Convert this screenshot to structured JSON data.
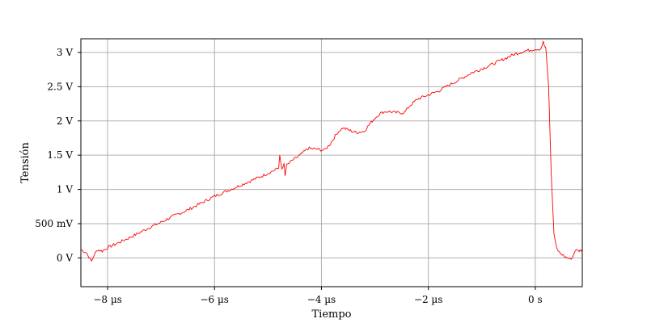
{
  "chart_data": {
    "type": "line",
    "title": "",
    "xlabel": "Tiempo",
    "ylabel": "Tensión",
    "xlim": [
      -8.5,
      0.88
    ],
    "ylim": [
      -0.42,
      3.2
    ],
    "grid": true,
    "line_color": "#ff0000",
    "x_ticks": [
      {
        "value": -8,
        "label": "−8 µs"
      },
      {
        "value": -6,
        "label": "−6 µs"
      },
      {
        "value": -4,
        "label": "−4 µs"
      },
      {
        "value": -2,
        "label": "−2 µs"
      },
      {
        "value": 0,
        "label": "0 s"
      }
    ],
    "y_ticks": [
      {
        "value": 0,
        "label": "0 V"
      },
      {
        "value": 0.5,
        "label": "500 mV"
      },
      {
        "value": 1,
        "label": "1 V"
      },
      {
        "value": 1.5,
        "label": "1.5 V"
      },
      {
        "value": 2,
        "label": "2 V"
      },
      {
        "value": 2.5,
        "label": "2.5 V"
      },
      {
        "value": 3,
        "label": "3 V"
      }
    ],
    "series": [
      {
        "x": [
          -8.5,
          -8.4,
          -8.3,
          -8.25,
          -8.18,
          -8.1,
          -8.0,
          -7.8,
          -7.5,
          -7.2,
          -7.0,
          -6.8,
          -6.5,
          -6.2,
          -6.0,
          -5.7,
          -5.4,
          -5.1,
          -4.8,
          -4.78,
          -4.74,
          -4.7,
          -4.68,
          -4.65,
          -4.55,
          -4.4,
          -4.25,
          -4.1,
          -3.95,
          -3.85,
          -3.7,
          -3.6,
          -3.5,
          -3.35,
          -3.2,
          -3.05,
          -2.95,
          -2.85,
          -2.75,
          -2.6,
          -2.45,
          -2.35,
          -2.2,
          -2.0,
          -1.8,
          -1.6,
          -1.4,
          -1.2,
          -1.0,
          -0.8,
          -0.6,
          -0.4,
          -0.2,
          0.0,
          0.1,
          0.15,
          0.18,
          0.2,
          0.25,
          0.3,
          0.35,
          0.4,
          0.45,
          0.5,
          0.55,
          0.6,
          0.65,
          0.7,
          0.75,
          0.8,
          0.88
        ],
        "y": [
          0.12,
          0.08,
          -0.05,
          0.05,
          0.12,
          0.1,
          0.15,
          0.22,
          0.33,
          0.45,
          0.52,
          0.6,
          0.7,
          0.82,
          0.9,
          1.0,
          1.1,
          1.2,
          1.31,
          1.5,
          1.3,
          1.38,
          1.2,
          1.35,
          1.42,
          1.5,
          1.6,
          1.59,
          1.57,
          1.65,
          1.83,
          1.9,
          1.87,
          1.83,
          1.85,
          2.0,
          2.08,
          2.13,
          2.14,
          2.12,
          2.12,
          2.22,
          2.32,
          2.38,
          2.44,
          2.53,
          2.61,
          2.7,
          2.76,
          2.83,
          2.9,
          2.97,
          3.02,
          3.05,
          3.05,
          3.15,
          3.08,
          3.05,
          2.5,
          1.2,
          0.35,
          0.14,
          0.08,
          0.05,
          0.02,
          0.0,
          -0.02,
          0.01,
          0.12,
          0.1,
          0.12
        ]
      }
    ]
  }
}
